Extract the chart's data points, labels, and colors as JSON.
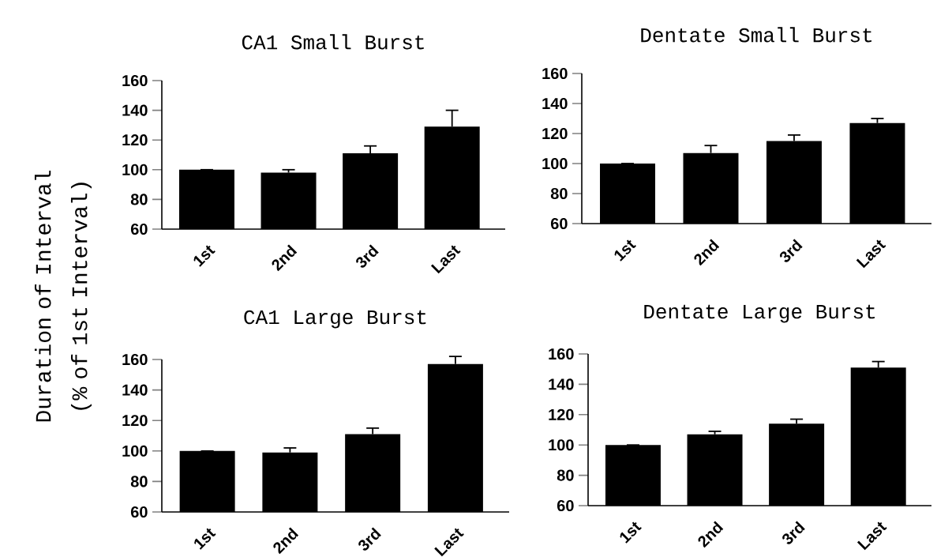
{
  "chart_data": [
    {
      "type": "bar",
      "title": "CA1 Small Burst",
      "ylabel": "Duration of Interval (% of 1st Interval)",
      "categories": [
        "1st",
        "2nd",
        "3rd",
        "Last"
      ],
      "values": [
        100,
        98,
        111,
        129
      ],
      "errors": [
        null,
        2,
        5,
        11
      ],
      "color": "#000000",
      "ylim": [
        60,
        160
      ],
      "yticks": [
        60,
        80,
        100,
        120,
        140,
        160
      ]
    },
    {
      "type": "bar",
      "title": "Dentate Small Burst",
      "categories": [
        "1st",
        "2nd",
        "3rd",
        "Last"
      ],
      "values": [
        100,
        107,
        115,
        127
      ],
      "errors": [
        null,
        5,
        4,
        3
      ],
      "color": "#000000",
      "ylim": [
        60,
        160
      ],
      "yticks": [
        60,
        80,
        100,
        120,
        140,
        160
      ]
    },
    {
      "type": "bar",
      "title": "CA1 Large Burst",
      "categories": [
        "1st",
        "2nd",
        "3rd",
        "Last"
      ],
      "values": [
        100,
        99,
        111,
        157
      ],
      "errors": [
        null,
        3,
        4,
        5
      ],
      "color": "#000000",
      "ylim": [
        60,
        160
      ],
      "yticks": [
        60,
        80,
        100,
        120,
        140,
        160
      ]
    },
    {
      "type": "bar",
      "title": "Dentate Large Burst",
      "categories": [
        "1st",
        "2nd",
        "3rd",
        "Last"
      ],
      "values": [
        100,
        107,
        114,
        151
      ],
      "errors": [
        null,
        2,
        3,
        4
      ],
      "color": "#000000",
      "ylim": [
        60,
        160
      ],
      "yticks": [
        60,
        80,
        100,
        120,
        140,
        160
      ]
    }
  ]
}
